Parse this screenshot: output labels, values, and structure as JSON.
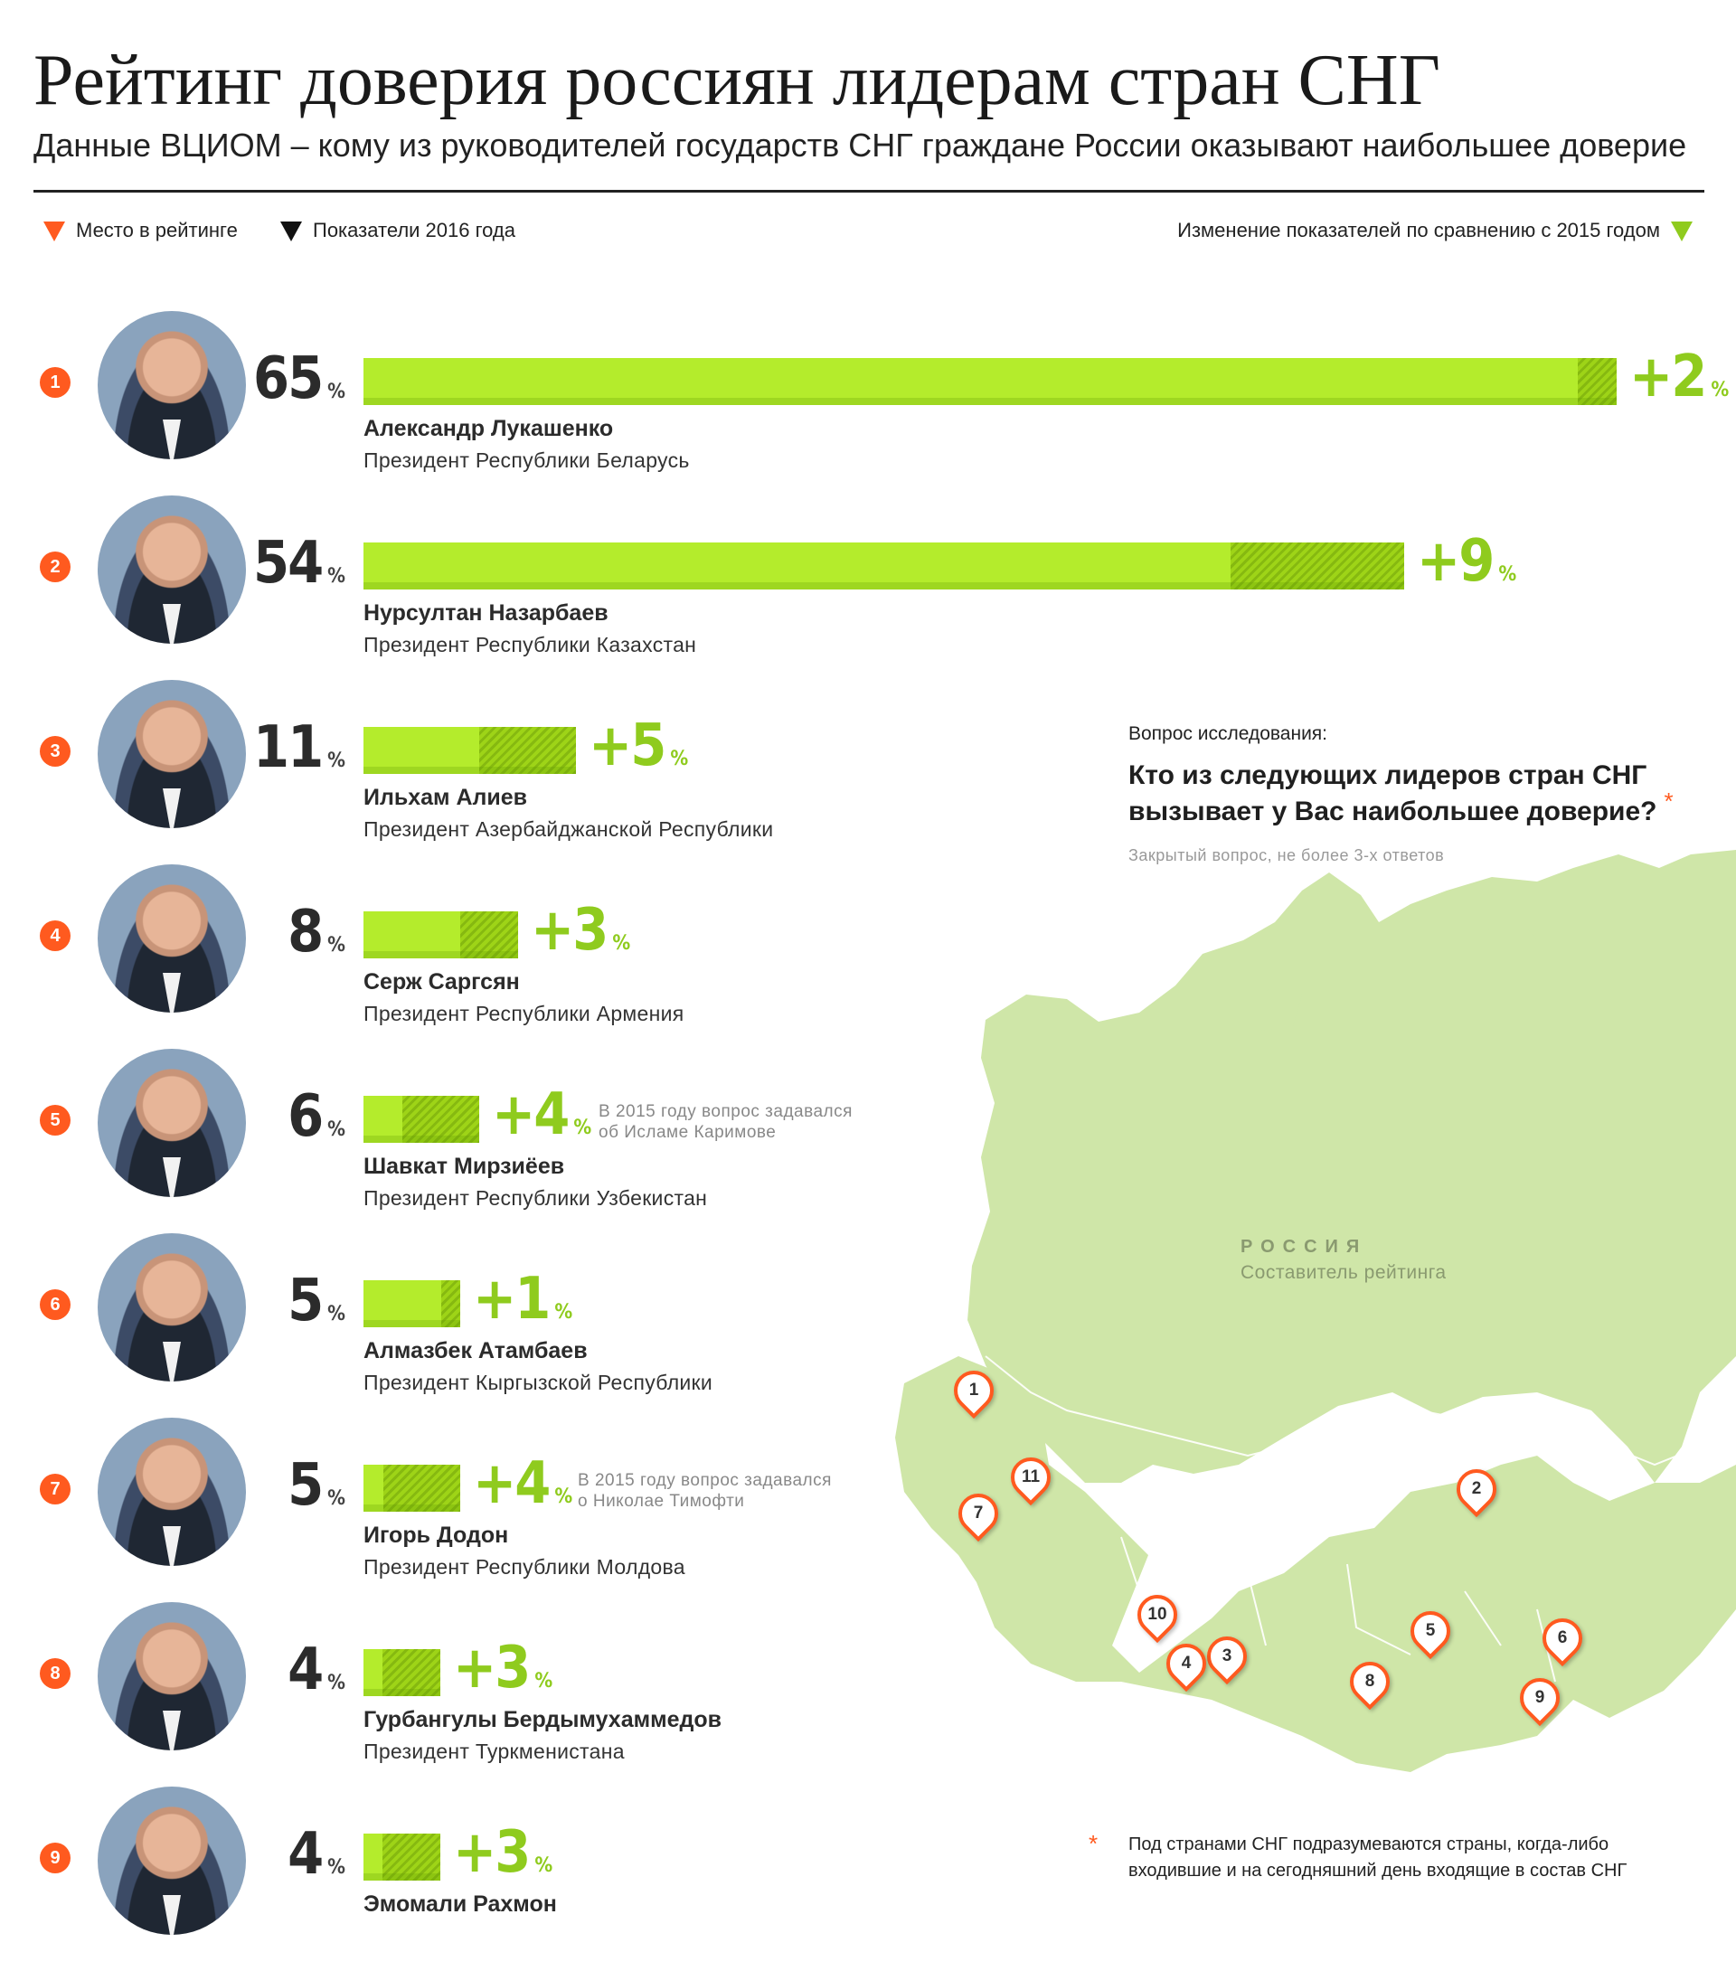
{
  "header": {
    "title": "Рейтинг доверия россиян лидерам стран СНГ",
    "subtitle": "Данные ВЦИОМ – кому из руководителей государств СНГ граждане России оказывают наибольшее доверие"
  },
  "legend": {
    "rank": "Место в рейтинге",
    "year": "Показатели 2016 года",
    "change": "Изменение показателей по сравнению с 2015 годом"
  },
  "colors": {
    "accent_orange": "#ff5a1f",
    "bar_green": "#b4ec2c",
    "change_green": "#8fcb1e",
    "map_green": "#cfe6a8"
  },
  "pct_symbol": "%",
  "chart_data": {
    "type": "bar",
    "orientation": "horizontal",
    "categories": [
      "Александр Лукашенко",
      "Нурсултан Назарбаев",
      "Ильхам Алиев",
      "Серж Саргсян",
      "Шавкат Мирзиёев",
      "Алмазбек Атамбаев",
      "Игорь Додон",
      "Гурбангулы Бердымухаммедов",
      "Эмомали Рахмон"
    ],
    "series": [
      {
        "name": "Показатели 2016 года",
        "values": [
          65,
          54,
          11,
          8,
          6,
          5,
          5,
          4,
          4
        ]
      },
      {
        "name": "Изменение показателей по сравнению с 2015 годом",
        "values": [
          2,
          9,
          5,
          3,
          4,
          1,
          4,
          3,
          3
        ]
      }
    ],
    "xlim": [
      0,
      65
    ],
    "legend_position": "top"
  },
  "rows": [
    {
      "rank": "1",
      "pct": "65",
      "change": "+2",
      "name": "Александр Лукашенко",
      "position": "Президент Республики Беларусь",
      "note1": "",
      "note2": ""
    },
    {
      "rank": "2",
      "pct": "54",
      "change": "+9",
      "name": "Нурсултан Назарбаев",
      "position": "Президент Республики Казахстан",
      "note1": "",
      "note2": ""
    },
    {
      "rank": "3",
      "pct": "11",
      "change": "+5",
      "name": "Ильхам Алиев",
      "position": "Президент Азербайджанской Республики",
      "note1": "",
      "note2": ""
    },
    {
      "rank": "4",
      "pct": "8",
      "change": "+3",
      "name": "Серж Саргсян",
      "position": "Президент Республики Армения",
      "note1": "",
      "note2": ""
    },
    {
      "rank": "5",
      "pct": "6",
      "change": "+4",
      "name": "Шавкат Мирзиёев",
      "position": "Президент Республики Узбекистан",
      "note1": "В 2015 году вопрос задавался",
      "note2": "об Исламе Каримове"
    },
    {
      "rank": "6",
      "pct": "5",
      "change": "+1",
      "name": "Алмазбек Атамбаев",
      "position": "Президент Кыргызской Республики",
      "note1": "",
      "note2": ""
    },
    {
      "rank": "7",
      "pct": "5",
      "change": "+4",
      "name": "Игорь Додон",
      "position": "Президент Республики Молдова",
      "note1": "В 2015 году вопрос задавался",
      "note2": "о Николае Тимофти"
    },
    {
      "rank": "8",
      "pct": "4",
      "change": "+3",
      "name": "Гурбангулы Бердымухаммедов",
      "position": "Президент Туркменистана",
      "note1": "",
      "note2": ""
    },
    {
      "rank": "9",
      "pct": "4",
      "change": "+3",
      "name": "Эмомали Рахмон",
      "position": "",
      "note1": "",
      "note2": ""
    }
  ],
  "question": {
    "label": "Вопрос исследования:",
    "text": "Кто из следующих лидеров стран СНГ вызывает у Вас наибольшее доверие?",
    "asterisk": "*",
    "note": "Закрытый вопрос, не более 3-х ответов"
  },
  "map": {
    "country": "РОССИЯ",
    "country_sub": "Составитель рейтинга",
    "pins": [
      "1",
      "2",
      "3",
      "4",
      "5",
      "6",
      "7",
      "8",
      "9",
      "10",
      "11"
    ]
  },
  "footnote": {
    "asterisk": "*",
    "text": "Под странами СНГ подразумеваются страны, когда-либо входившие и на сегодняшний день входящие в состав СНГ"
  }
}
